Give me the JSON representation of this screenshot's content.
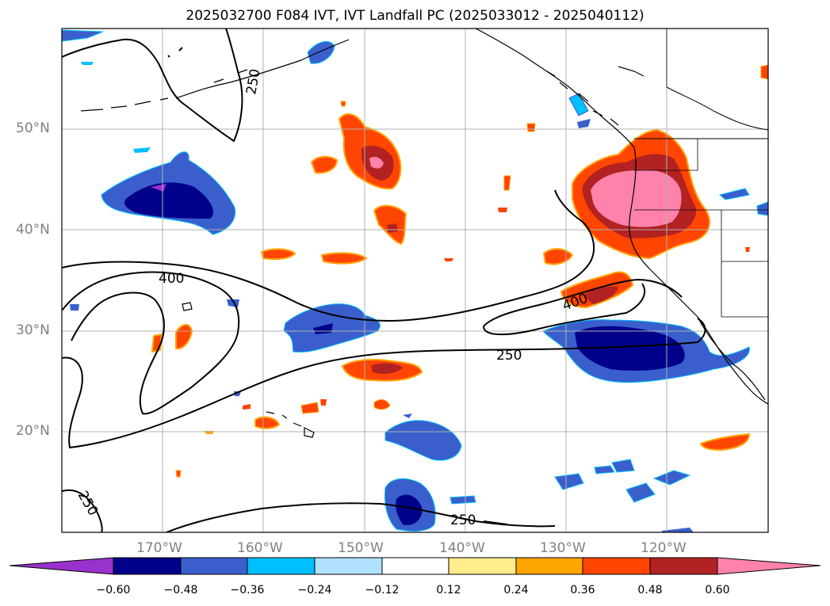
{
  "title": "2025032700 F084 IVT, IVT Landfall PC (2025033012 - 2025040112)",
  "lat_labels": [
    "50°N",
    "40°N",
    "30°N",
    "20°N"
  ],
  "lon_labels": [
    "170°W",
    "160°W",
    "150°W",
    "140°W",
    "130°W",
    "120°W"
  ],
  "contour_labels": [
    "250",
    "400",
    "400",
    "250",
    "250",
    "250"
  ],
  "colorbar": {
    "ticks": [
      "−0.60",
      "−0.48",
      "−0.36",
      "−0.24",
      "−0.12",
      "0.12",
      "0.24",
      "0.36",
      "0.48",
      "0.60"
    ],
    "colors": [
      "#9932cc",
      "#00008b",
      "#3a5fcd",
      "#00bfff",
      "#b0e2ff",
      "#ffffff",
      "#ffec8b",
      "#ffa500",
      "#ff4500",
      "#b22222",
      "#ff82ab"
    ]
  }
}
